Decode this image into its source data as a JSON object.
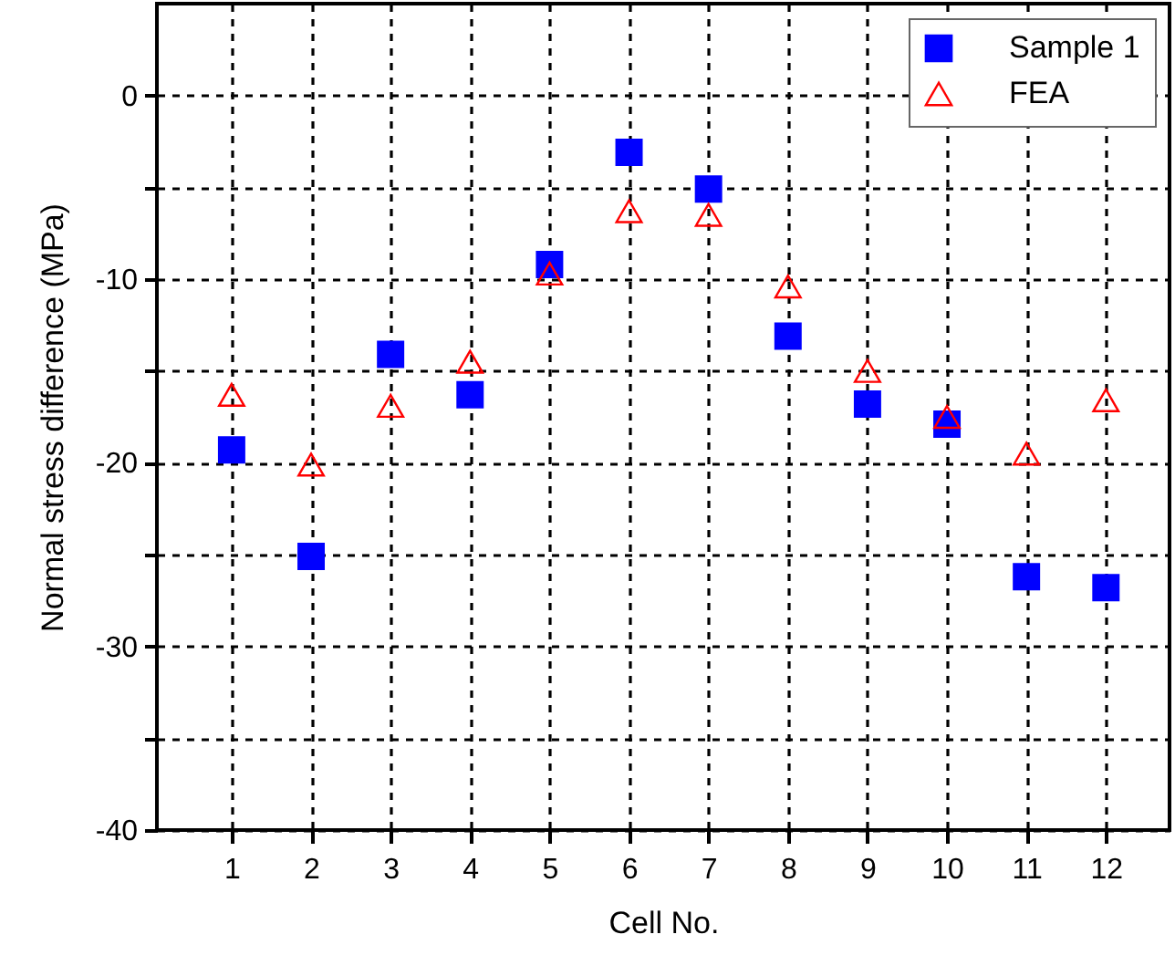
{
  "chart_data": {
    "type": "scatter",
    "xlabel": "Cell No.",
    "ylabel": "Normal stress difference (MPa)",
    "x": [
      1,
      2,
      3,
      4,
      5,
      6,
      7,
      8,
      9,
      10,
      11,
      12
    ],
    "series": [
      {
        "name": "Sample 1",
        "color": "#0000ff",
        "marker": "square",
        "values": [
          -19.3,
          -25.1,
          -14.1,
          -16.3,
          -9.2,
          -3.1,
          -5.1,
          -13.1,
          -16.8,
          -17.9,
          -26.2,
          -26.8
        ]
      },
      {
        "name": "FEA",
        "color": "#ff0000",
        "marker": "triangle",
        "values": [
          -16.3,
          -20.1,
          -16.9,
          -14.5,
          -9.7,
          -6.3,
          -6.5,
          -10.4,
          -15.0,
          -17.5,
          -19.5,
          -16.6
        ]
      }
    ],
    "xlim": [
      0.06,
      12.8
    ],
    "xticks": [
      1,
      2,
      3,
      4,
      5,
      6,
      7,
      8,
      9,
      10,
      11,
      12
    ],
    "ylim": [
      -40,
      5
    ],
    "yticks": [
      -40,
      {
        "value": -35,
        "label": null
      },
      -30,
      {
        "value": -25,
        "label": null
      },
      -20,
      {
        "value": -15,
        "label": null
      },
      -10,
      {
        "value": -5,
        "label": null
      },
      0
    ],
    "grid": true,
    "legend": "top right"
  }
}
